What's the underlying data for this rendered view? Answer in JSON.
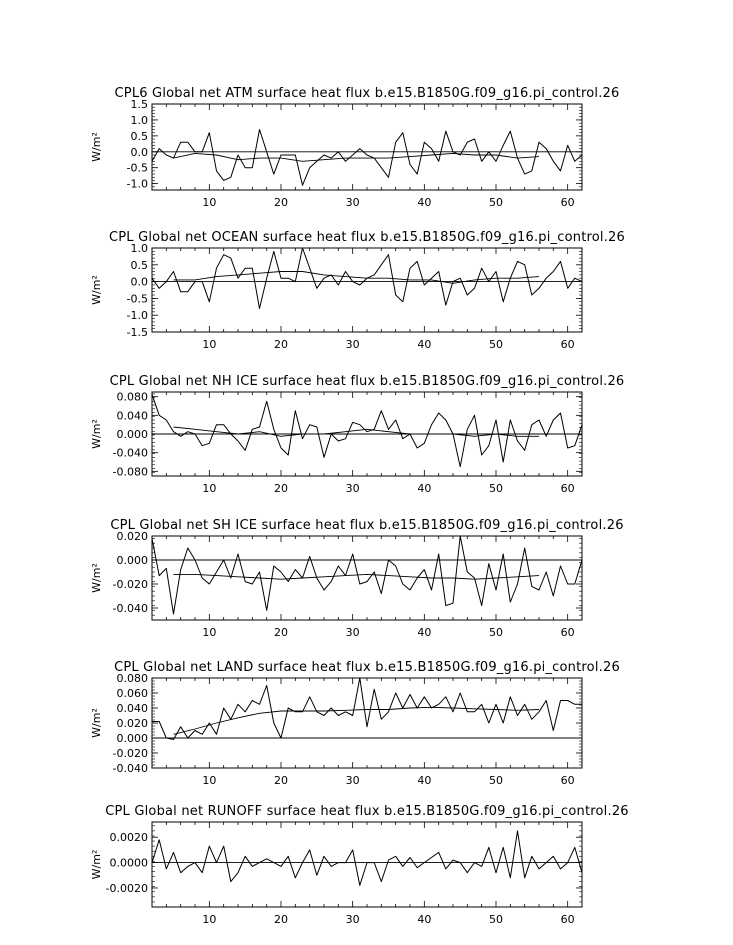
{
  "chart_data": [
    {
      "type": "line",
      "title": "CPL6 Global net ATM surface heat flux b.e15.B1850G.f09_g16.pi_control.26",
      "ylabel": "W/m²",
      "xlim": [
        2,
        62
      ],
      "ylim": [
        -1.2,
        1.5
      ],
      "xticks": [
        "10",
        "20",
        "30",
        "40",
        "50",
        "60"
      ],
      "yticks": [
        "1.5",
        "1.0",
        "0.5",
        "0.0",
        "-0.5",
        "-1.0"
      ],
      "zero_line": true,
      "series": [
        {
          "x": [
            2,
            3,
            4,
            5,
            6,
            7,
            8,
            9,
            10,
            11,
            12,
            13,
            14,
            15,
            16,
            17,
            18,
            19,
            20,
            21,
            22,
            23,
            24,
            25,
            26,
            27,
            28,
            29,
            30,
            31,
            32,
            33,
            34,
            35,
            36,
            37,
            38,
            39,
            40,
            41,
            42,
            43,
            44,
            45,
            46,
            47,
            48,
            49,
            50,
            51,
            52,
            53,
            54,
            55,
            56,
            57,
            58,
            59,
            60,
            61,
            62
          ],
          "y": [
            -0.3,
            0.1,
            -0.1,
            -0.2,
            0.3,
            0.3,
            0.0,
            0.0,
            0.6,
            -0.6,
            -0.9,
            -0.8,
            -0.1,
            -0.5,
            -0.5,
            0.7,
            0.0,
            -0.7,
            -0.1,
            -0.1,
            -0.1,
            -1.05,
            -0.5,
            -0.3,
            -0.1,
            -0.2,
            0.0,
            -0.3,
            -0.1,
            0.1,
            -0.1,
            -0.2,
            -0.5,
            -0.8,
            0.3,
            0.6,
            -0.4,
            -0.7,
            0.3,
            0.1,
            -0.3,
            0.65,
            0.0,
            -0.1,
            0.3,
            0.4,
            -0.3,
            0.0,
            -0.3,
            0.2,
            0.65,
            -0.2,
            -0.7,
            -0.6,
            0.3,
            0.1,
            -0.3,
            -0.6,
            0.2,
            -0.3,
            -0.1
          ]
        },
        {
          "x": [
            5,
            8,
            11,
            14,
            17,
            20,
            23,
            26,
            29,
            32,
            35,
            38,
            41,
            44,
            47,
            50,
            53,
            56
          ],
          "y": [
            -0.2,
            -0.05,
            -0.1,
            -0.25,
            -0.2,
            -0.2,
            -0.3,
            -0.25,
            -0.2,
            -0.2,
            -0.2,
            -0.15,
            -0.1,
            -0.05,
            -0.1,
            -0.1,
            -0.2,
            -0.15
          ]
        }
      ]
    },
    {
      "type": "line",
      "title": "CPL Global net OCEAN surface heat flux b.e15.B1850G.f09_g16.pi_control.26",
      "ylabel": "W/m²",
      "xlim": [
        2,
        62
      ],
      "ylim": [
        -1.5,
        1.0
      ],
      "xticks": [
        "10",
        "20",
        "30",
        "40",
        "50",
        "60"
      ],
      "yticks": [
        "1.0",
        "0.5",
        "0.0",
        "-0.5",
        "-1.0",
        "-1.5"
      ],
      "zero_line": true,
      "series": [
        {
          "x": [
            2,
            3,
            4,
            5,
            6,
            7,
            8,
            9,
            10,
            11,
            12,
            13,
            14,
            15,
            16,
            17,
            18,
            19,
            20,
            21,
            22,
            23,
            24,
            25,
            26,
            27,
            28,
            29,
            30,
            31,
            32,
            33,
            34,
            35,
            36,
            37,
            38,
            39,
            40,
            41,
            42,
            43,
            44,
            45,
            46,
            47,
            48,
            49,
            50,
            51,
            52,
            53,
            54,
            55,
            56,
            57,
            58,
            59,
            60,
            61,
            62
          ],
          "y": [
            0.1,
            -0.2,
            0.0,
            0.3,
            -0.3,
            -0.3,
            0.0,
            0.0,
            -0.6,
            0.4,
            0.8,
            0.7,
            0.1,
            0.4,
            0.4,
            -0.8,
            0.1,
            0.9,
            0.1,
            0.1,
            0.0,
            1.0,
            0.4,
            -0.2,
            0.1,
            0.2,
            -0.1,
            0.3,
            0.0,
            -0.1,
            0.1,
            0.2,
            0.5,
            0.8,
            -0.4,
            -0.6,
            0.4,
            0.6,
            -0.1,
            0.1,
            0.3,
            -0.7,
            0.0,
            0.1,
            -0.4,
            -0.2,
            0.4,
            0.0,
            0.3,
            -0.6,
            0.1,
            0.6,
            0.5,
            -0.4,
            -0.2,
            0.1,
            0.3,
            0.6,
            -0.2,
            0.1,
            0.0
          ]
        },
        {
          "x": [
            5,
            8,
            11,
            14,
            17,
            20,
            23,
            26,
            29,
            32,
            35,
            38,
            41,
            44,
            47,
            50,
            53,
            56
          ],
          "y": [
            0.05,
            0.05,
            0.15,
            0.2,
            0.25,
            0.3,
            0.3,
            0.2,
            0.15,
            0.1,
            0.1,
            0.05,
            0.05,
            -0.05,
            0.05,
            0.1,
            0.1,
            0.15
          ]
        }
      ]
    },
    {
      "type": "line",
      "title": "CPL Global net NH ICE surface heat flux b.e15.B1850G.f09_g16.pi_control.26",
      "ylabel": "W/m²",
      "xlim": [
        2,
        62
      ],
      "ylim": [
        -0.09,
        0.09
      ],
      "xticks": [
        "10",
        "20",
        "30",
        "40",
        "50",
        "60"
      ],
      "yticks": [
        "0.080",
        "0.040",
        "0.000",
        "-0.040",
        "-0.080"
      ],
      "zero_line": true,
      "series": [
        {
          "x": [
            2,
            3,
            4,
            5,
            6,
            7,
            8,
            9,
            10,
            11,
            12,
            13,
            14,
            15,
            16,
            17,
            18,
            19,
            20,
            21,
            22,
            23,
            24,
            25,
            26,
            27,
            28,
            29,
            30,
            31,
            32,
            33,
            34,
            35,
            36,
            37,
            38,
            39,
            40,
            41,
            42,
            43,
            44,
            45,
            46,
            47,
            48,
            49,
            50,
            51,
            52,
            53,
            54,
            55,
            56,
            57,
            58,
            59,
            60,
            61,
            62
          ],
          "y": [
            0.085,
            0.04,
            0.03,
            0.005,
            -0.005,
            0.005,
            0.0,
            -0.025,
            -0.02,
            0.02,
            0.02,
            0.0,
            -0.015,
            -0.035,
            0.01,
            0.015,
            0.07,
            0.01,
            -0.03,
            -0.045,
            0.05,
            -0.01,
            0.02,
            0.015,
            -0.05,
            0.0,
            -0.015,
            -0.01,
            0.025,
            0.02,
            0.005,
            0.01,
            0.05,
            0.01,
            0.03,
            -0.01,
            0.0,
            -0.03,
            -0.02,
            0.02,
            0.045,
            0.03,
            0.0,
            -0.07,
            0.01,
            0.04,
            -0.045,
            -0.025,
            0.03,
            -0.06,
            0.03,
            -0.015,
            -0.035,
            0.02,
            0.03,
            -0.005,
            0.03,
            0.045,
            -0.03,
            -0.025,
            0.02
          ]
        },
        {
          "x": [
            5,
            8,
            11,
            14,
            17,
            20,
            23,
            26,
            29,
            32,
            35,
            38,
            41,
            44,
            47,
            50,
            53,
            56
          ],
          "y": [
            0.015,
            0.01,
            0.005,
            0.0,
            0.005,
            -0.005,
            0.0,
            0.0,
            0.005,
            0.01,
            0.005,
            0.0,
            0.0,
            0.0,
            -0.005,
            0.0,
            -0.005,
            -0.005
          ]
        }
      ]
    },
    {
      "type": "line",
      "title": "CPL Global net SH ICE surface heat flux b.e15.B1850G.f09_g16.pi_control.26",
      "ylabel": "W/m²",
      "xlim": [
        2,
        62
      ],
      "ylim": [
        -0.05,
        0.02
      ],
      "xticks": [
        "10",
        "20",
        "30",
        "40",
        "50",
        "60"
      ],
      "yticks": [
        "0.020",
        "0.000",
        "-0.020",
        "-0.040"
      ],
      "zero_line": true,
      "series": [
        {
          "x": [
            2,
            3,
            4,
            5,
            6,
            7,
            8,
            9,
            10,
            11,
            12,
            13,
            14,
            15,
            16,
            17,
            18,
            19,
            20,
            21,
            22,
            23,
            24,
            25,
            26,
            27,
            28,
            29,
            30,
            31,
            32,
            33,
            34,
            35,
            36,
            37,
            38,
            39,
            40,
            41,
            42,
            43,
            44,
            45,
            46,
            47,
            48,
            49,
            50,
            51,
            52,
            53,
            54,
            55,
            56,
            57,
            58,
            59,
            60,
            61,
            62
          ],
          "y": [
            0.018,
            -0.013,
            -0.007,
            -0.045,
            -0.008,
            0.01,
            0.0,
            -0.015,
            -0.02,
            -0.01,
            0.0,
            -0.015,
            0.005,
            -0.018,
            -0.02,
            -0.01,
            -0.042,
            -0.005,
            -0.01,
            -0.018,
            -0.008,
            -0.015,
            0.003,
            -0.015,
            -0.025,
            -0.018,
            -0.005,
            -0.013,
            0.005,
            -0.02,
            -0.018,
            -0.01,
            -0.028,
            0.0,
            -0.005,
            -0.02,
            -0.025,
            -0.015,
            -0.008,
            -0.025,
            0.005,
            -0.038,
            -0.036,
            0.02,
            -0.01,
            -0.015,
            -0.038,
            -0.003,
            -0.025,
            0.005,
            -0.035,
            -0.02,
            0.01,
            -0.022,
            -0.025,
            -0.01,
            -0.03,
            -0.005,
            -0.02,
            -0.02,
            0.0
          ]
        },
        {
          "x": [
            5,
            8,
            11,
            14,
            17,
            20,
            23,
            26,
            29,
            32,
            35,
            38,
            41,
            44,
            47,
            50,
            53,
            56
          ],
          "y": [
            -0.012,
            -0.012,
            -0.013,
            -0.014,
            -0.015,
            -0.016,
            -0.015,
            -0.014,
            -0.013,
            -0.012,
            -0.013,
            -0.014,
            -0.015,
            -0.015,
            -0.016,
            -0.015,
            -0.014,
            -0.013
          ]
        }
      ]
    },
    {
      "type": "line",
      "title": "CPL Global net LAND surface heat flux b.e15.B1850G.f09_g16.pi_control.26",
      "ylabel": "W/m²",
      "xlim": [
        2,
        62
      ],
      "ylim": [
        -0.04,
        0.08
      ],
      "xticks": [
        "10",
        "20",
        "30",
        "40",
        "50",
        "60"
      ],
      "yticks": [
        "0.080",
        "0.060",
        "0.040",
        "0.020",
        "0.000",
        "-0.020",
        "-0.040"
      ],
      "zero_line": true,
      "series": [
        {
          "x": [
            2,
            3,
            4,
            5,
            6,
            7,
            8,
            9,
            10,
            11,
            12,
            13,
            14,
            15,
            16,
            17,
            18,
            19,
            20,
            21,
            22,
            23,
            24,
            25,
            26,
            27,
            28,
            29,
            30,
            31,
            32,
            33,
            34,
            35,
            36,
            37,
            38,
            39,
            40,
            41,
            42,
            43,
            44,
            45,
            46,
            47,
            48,
            49,
            50,
            51,
            52,
            53,
            54,
            55,
            56,
            57,
            58,
            59,
            60,
            61,
            62
          ],
          "y": [
            0.022,
            0.022,
            0.0,
            -0.002,
            0.015,
            0.0,
            0.01,
            0.005,
            0.02,
            0.005,
            0.04,
            0.025,
            0.045,
            0.035,
            0.05,
            0.045,
            0.07,
            0.02,
            0.0,
            0.04,
            0.035,
            0.035,
            0.055,
            0.035,
            0.03,
            0.04,
            0.03,
            0.035,
            0.03,
            0.08,
            0.015,
            0.065,
            0.025,
            0.035,
            0.06,
            0.04,
            0.058,
            0.04,
            0.055,
            0.04,
            0.045,
            0.055,
            0.035,
            0.06,
            0.035,
            0.035,
            0.045,
            0.02,
            0.045,
            0.02,
            0.055,
            0.03,
            0.045,
            0.025,
            0.035,
            0.05,
            0.01,
            0.05,
            0.05,
            0.045,
            0.045
          ]
        },
        {
          "x": [
            5,
            8,
            11,
            14,
            17,
            20,
            23,
            26,
            29,
            32,
            35,
            38,
            41,
            44,
            47,
            50,
            53,
            56
          ],
          "y": [
            0.005,
            0.012,
            0.02,
            0.027,
            0.033,
            0.036,
            0.036,
            0.036,
            0.037,
            0.038,
            0.038,
            0.04,
            0.041,
            0.04,
            0.039,
            0.038,
            0.037,
            0.038
          ]
        }
      ]
    },
    {
      "type": "line",
      "title": "CPL Global net RUNOFF surface heat flux b.e15.B1850G.f09_g16.pi_control.26",
      "ylabel": "W/m²",
      "xlim": [
        2,
        62
      ],
      "ylim": [
        -0.0035,
        0.0032
      ],
      "xticks": [
        "10",
        "20",
        "30",
        "40",
        "50",
        "60"
      ],
      "yticks": [
        "0.0020",
        "0.0000",
        "-0.0020"
      ],
      "zero_line": true,
      "series": [
        {
          "x": [
            2,
            3,
            4,
            5,
            6,
            7,
            8,
            9,
            10,
            11,
            12,
            13,
            14,
            15,
            16,
            17,
            18,
            19,
            20,
            21,
            22,
            23,
            24,
            25,
            26,
            27,
            28,
            29,
            30,
            31,
            32,
            33,
            34,
            35,
            36,
            37,
            38,
            39,
            40,
            41,
            42,
            43,
            44,
            45,
            46,
            47,
            48,
            49,
            50,
            51,
            52,
            53,
            54,
            55,
            56,
            57,
            58,
            59,
            60,
            61,
            62
          ],
          "y": [
            0.0,
            0.0018,
            -0.0005,
            0.0008,
            -0.0008,
            -0.0003,
            0.0,
            -0.0008,
            0.0013,
            0.0,
            0.0013,
            -0.0015,
            -0.0008,
            0.0005,
            -0.0003,
            0.0,
            0.0003,
            0.0,
            -0.0003,
            0.0005,
            -0.0012,
            0.0,
            0.001,
            -0.001,
            0.0005,
            -0.0003,
            0.0,
            0.0,
            0.001,
            -0.0018,
            0.0,
            0.0,
            -0.0015,
            0.0002,
            0.0005,
            -0.0003,
            0.0004,
            -0.0004,
            0.0,
            0.0004,
            0.0008,
            -0.0005,
            0.0002,
            0.0,
            -0.0008,
            0.0,
            -0.0003,
            0.0012,
            -0.0008,
            0.0012,
            -0.0012,
            0.0025,
            -0.0012,
            0.0005,
            -0.0005,
            0.0,
            0.0005,
            -0.0005,
            0.0,
            0.0012,
            -0.0008
          ]
        }
      ]
    }
  ]
}
